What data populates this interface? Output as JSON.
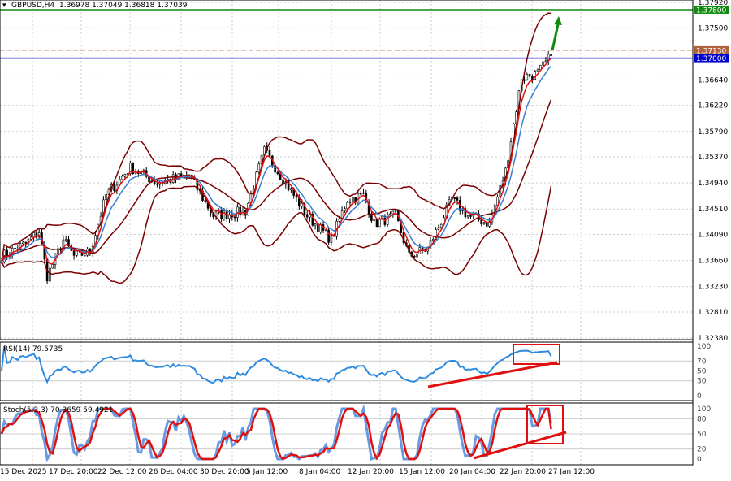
{
  "header": {
    "symbol": "GBPUSD,H4",
    "ohlc": "1.36978 1.37049 1.36818 1.37039"
  },
  "colors": {
    "bb": "#7a0000",
    "ma_fast": "#e01010",
    "ma_slow": "#3a7fd0",
    "rsi": "#2e8ae0",
    "stoch_main": "#6a9ae0",
    "stoch_signal": "#e01010",
    "level_green": "#108a10",
    "level_brown": "#b0603a",
    "level_blue": "#0000d0",
    "annotation": "#e01010"
  },
  "chart_data": [
    {
      "type": "candlestick",
      "title": "GBPUSD,H4",
      "y_ticks": [
        "1.37920",
        "1.37500",
        "1.36640",
        "1.36220",
        "1.35790",
        "1.35370",
        "1.34940",
        "1.34510",
        "1.34090",
        "1.33660",
        "1.33230",
        "1.32810",
        "1.32380"
      ],
      "ylim": [
        1.3238,
        1.3792
      ],
      "x_ticks": [
        "15 Dec 2025",
        "17 Dec 20:00",
        "22 Dec 12:00",
        "26 Dec 04:00",
        "30 Dec 20:00",
        "5 Jan 12:00",
        "8 Jan 04:00",
        "12 Jan 20:00",
        "15 Jan 12:00",
        "20 Jan 04:00",
        "22 Jan 20:00",
        "27 Jan 12:00"
      ],
      "levels": [
        {
          "label": "1.37800",
          "value": 1.378,
          "color": "green"
        },
        {
          "label": "1.37130",
          "value": 1.3713,
          "color": "brown"
        },
        {
          "label": "1.37000",
          "value": 1.37,
          "color": "blue"
        }
      ],
      "approx_close_path": [
        [
          0,
          1.3373
        ],
        [
          9,
          1.3394
        ],
        [
          14,
          1.3414
        ],
        [
          17,
          1.334
        ],
        [
          23,
          1.34
        ],
        [
          27,
          1.3373
        ],
        [
          33,
          1.338
        ],
        [
          39,
          1.3474
        ],
        [
          48,
          1.352
        ],
        [
          58,
          1.3494
        ],
        [
          70,
          1.3507
        ],
        [
          79,
          1.344
        ],
        [
          91,
          1.3447
        ],
        [
          98,
          1.3547
        ],
        [
          106,
          1.3494
        ],
        [
          114,
          1.344
        ],
        [
          123,
          1.34
        ],
        [
          129,
          1.3467
        ],
        [
          135,
          1.3474
        ],
        [
          139,
          1.3427
        ],
        [
          147,
          1.344
        ],
        [
          152,
          1.3373
        ],
        [
          159,
          1.3386
        ],
        [
          168,
          1.3467
        ],
        [
          174,
          1.344
        ],
        [
          182,
          1.3427
        ],
        [
          188,
          1.3514
        ],
        [
          194,
          1.3668
        ],
        [
          200,
          1.3675
        ],
        [
          205,
          1.37039
        ]
      ],
      "indicators": [
        "Bollinger Bands",
        "MA fast",
        "MA slow"
      ]
    },
    {
      "type": "line",
      "title": "RSI(14) 79.5735",
      "y_ticks": [
        "100",
        "70",
        "50",
        "30",
        "0"
      ],
      "ylim": [
        0,
        100
      ],
      "last": 79.5735
    },
    {
      "type": "line",
      "title": "Stoch(5,3,3) 70.3659 59.4921",
      "y_ticks": [
        "100",
        "80",
        "50",
        "20",
        "0"
      ],
      "ylim": [
        0,
        100
      ],
      "main": 70.3659,
      "signal": 59.4921
    }
  ]
}
